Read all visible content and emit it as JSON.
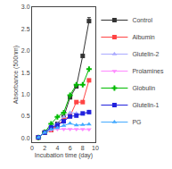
{
  "chart_data": {
    "type": "line",
    "x": [
      1,
      2,
      3,
      4,
      5,
      6,
      7,
      8,
      9
    ],
    "series": [
      {
        "name": "Control",
        "color": "#333333",
        "marker": "square",
        "values": [
          0.01,
          0.12,
          0.18,
          0.32,
          0.48,
          0.93,
          1.18,
          1.88,
          2.68
        ],
        "error": {
          "x": 9,
          "minus": 0.0,
          "plus": 0.08
        }
      },
      {
        "name": "Albumin",
        "color": "#ff4444",
        "marker": "square",
        "values": [
          0.01,
          0.12,
          0.18,
          0.28,
          0.42,
          0.5,
          0.82,
          0.82,
          1.32
        ]
      },
      {
        "name": "Glutelin-2",
        "color": "#aaaaff",
        "marker": "triangle-up",
        "values": [
          0.01,
          0.12,
          0.28,
          0.32,
          0.48,
          0.58,
          0.56,
          0.54,
          0.6
        ]
      },
      {
        "name": "Prolamines",
        "color": "#ff88ff",
        "marker": "triangle-down",
        "values": [
          0.01,
          0.12,
          0.18,
          0.2,
          0.2,
          0.2,
          0.2,
          0.2,
          0.19
        ]
      },
      {
        "name": "Globulin",
        "color": "#00bb00",
        "marker": "cross",
        "values": [
          0.01,
          0.13,
          0.32,
          0.48,
          0.58,
          0.98,
          1.22,
          1.22,
          1.58
        ]
      },
      {
        "name": "Glutelin-1",
        "color": "#2222dd",
        "marker": "square",
        "values": [
          0.01,
          0.12,
          0.24,
          0.29,
          0.38,
          0.49,
          0.51,
          0.56,
          0.59
        ]
      },
      {
        "name": "PG",
        "color": "#44aaff",
        "marker": "triangle-up",
        "values": [
          0.01,
          0.12,
          0.19,
          0.23,
          0.28,
          0.33,
          0.29,
          0.3,
          0.31
        ]
      }
    ],
    "xlabel": "Incubation time (day)",
    "ylabel": "Absorbance (500nm)",
    "xlim": [
      0,
      10
    ],
    "ylim": [
      -0.1,
      3.0
    ],
    "xticks": [
      0,
      2,
      4,
      6,
      8,
      10
    ],
    "yticks": [
      {
        "value": 0.0,
        "label": "0.0"
      },
      0.5,
      {
        "value": 1.0,
        "label": "1.0"
      },
      1.5,
      {
        "value": 2.0,
        "label": "2.0"
      },
      2.5,
      {
        "value": 3.0,
        "label": "3.0"
      }
    ],
    "grid": false,
    "legend": "right"
  }
}
